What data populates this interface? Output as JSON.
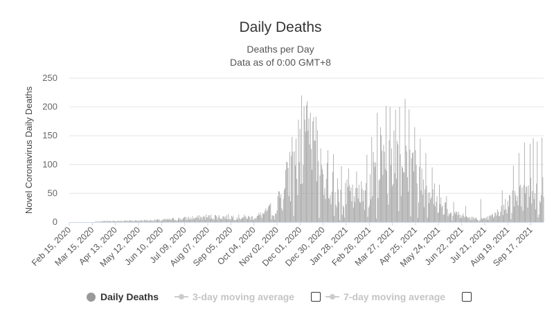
{
  "title": "Daily Deaths",
  "subtitle_line1": "Deaths per Day",
  "subtitle_line2": "Data as of 0:00 GMT+8",
  "legend": {
    "daily": "Daily Deaths",
    "ma3": "3-day moving average",
    "ma7": "7-day moving average"
  },
  "colors": {
    "bar": "#a6a6a6",
    "dot": "#999999",
    "inactive": "#cccccc",
    "grid": "#e6e6e6"
  },
  "chart_data": {
    "type": "bar",
    "title": "Daily Deaths",
    "ylabel": "Novel Coronavirus Daily Deaths",
    "ylim": [
      0,
      250
    ],
    "yticks": [
      0,
      50,
      100,
      150,
      200,
      250
    ],
    "x_start": "2020-02-15",
    "x_end": "2021-10-03",
    "xtick_labels": [
      "Feb 15, 2020",
      "Mar 15, 2020",
      "Apr 13, 2020",
      "May 12, 2020",
      "Jun 10, 2020",
      "Jul 09, 2020",
      "Aug 07, 2020",
      "Sep 05, 2020",
      "Oct 04, 2020",
      "Nov 02, 2020",
      "Dec 01, 2020",
      "Dec 30, 2020",
      "Jan 28, 2021",
      "Feb 26, 2021",
      "Mar 27, 2021",
      "Apr 25, 2021",
      "May 24, 2021",
      "Jun 22, 2021",
      "Jul 21, 2021",
      "Aug 19, 2021",
      "Sep 17, 2021"
    ],
    "series": [
      {
        "name": "Daily Deaths",
        "anchors": [
          [
            "2020-02-15",
            0
          ],
          [
            "2020-03-15",
            0
          ],
          [
            "2020-04-01",
            2
          ],
          [
            "2020-04-13",
            2
          ],
          [
            "2020-05-12",
            3
          ],
          [
            "2020-06-10",
            4
          ],
          [
            "2020-07-09",
            7
          ],
          [
            "2020-08-07",
            10
          ],
          [
            "2020-09-05",
            10
          ],
          [
            "2020-10-04",
            9
          ],
          [
            "2020-10-20",
            18
          ],
          [
            "2020-11-02",
            35
          ],
          [
            "2020-11-12",
            65
          ],
          [
            "2020-11-22",
            110
          ],
          [
            "2020-12-01",
            140
          ],
          [
            "2020-12-10",
            150
          ],
          [
            "2020-12-20",
            135
          ],
          [
            "2020-12-30",
            95
          ],
          [
            "2021-01-10",
            65
          ],
          [
            "2021-01-28",
            55
          ],
          [
            "2021-02-10",
            45
          ],
          [
            "2021-02-26",
            70
          ],
          [
            "2021-03-10",
            115
          ],
          [
            "2021-03-27",
            130
          ],
          [
            "2021-04-10",
            125
          ],
          [
            "2021-04-25",
            95
          ],
          [
            "2021-05-08",
            70
          ],
          [
            "2021-05-24",
            40
          ],
          [
            "2021-06-05",
            25
          ],
          [
            "2021-06-22",
            12
          ],
          [
            "2021-07-08",
            6
          ],
          [
            "2021-07-21",
            5
          ],
          [
            "2021-08-05",
            15
          ],
          [
            "2021-08-19",
            35
          ],
          [
            "2021-09-01",
            50
          ],
          [
            "2021-09-17",
            60
          ],
          [
            "2021-10-03",
            65
          ]
        ],
        "peaks": [
          [
            "2020-11-14",
            105
          ],
          [
            "2020-11-21",
            148
          ],
          [
            "2020-11-26",
            145
          ],
          [
            "2020-12-03",
            220
          ],
          [
            "2020-12-07",
            178
          ],
          [
            "2020-12-10",
            210
          ],
          [
            "2020-12-14",
            190
          ],
          [
            "2020-12-18",
            182
          ],
          [
            "2020-12-23",
            160
          ],
          [
            "2021-01-05",
            125
          ],
          [
            "2021-01-12",
            118
          ],
          [
            "2021-01-22",
            97
          ],
          [
            "2021-01-31",
            93
          ],
          [
            "2021-02-10",
            88
          ],
          [
            "2021-02-23",
            117
          ],
          [
            "2021-03-01",
            148
          ],
          [
            "2021-03-08",
            190
          ],
          [
            "2021-03-12",
            165
          ],
          [
            "2021-03-19",
            202
          ],
          [
            "2021-03-24",
            200
          ],
          [
            "2021-03-31",
            195
          ],
          [
            "2021-04-05",
            200
          ],
          [
            "2021-04-12",
            214
          ],
          [
            "2021-04-17",
            196
          ],
          [
            "2021-04-24",
            165
          ],
          [
            "2021-05-01",
            145
          ],
          [
            "2021-05-08",
            120
          ],
          [
            "2021-05-16",
            95
          ],
          [
            "2021-05-25",
            65
          ],
          [
            "2021-06-03",
            45
          ],
          [
            "2021-06-12",
            35
          ],
          [
            "2021-06-27",
            28
          ],
          [
            "2021-07-16",
            40
          ],
          [
            "2021-08-12",
            55
          ],
          [
            "2021-08-26",
            98
          ],
          [
            "2021-09-02",
            120
          ],
          [
            "2021-09-09",
            138
          ],
          [
            "2021-09-16",
            136
          ],
          [
            "2021-09-20",
            146
          ],
          [
            "2021-09-25",
            140
          ],
          [
            "2021-10-01",
            147
          ]
        ]
      }
    ],
    "legend_position": "bottom",
    "grid": true
  }
}
